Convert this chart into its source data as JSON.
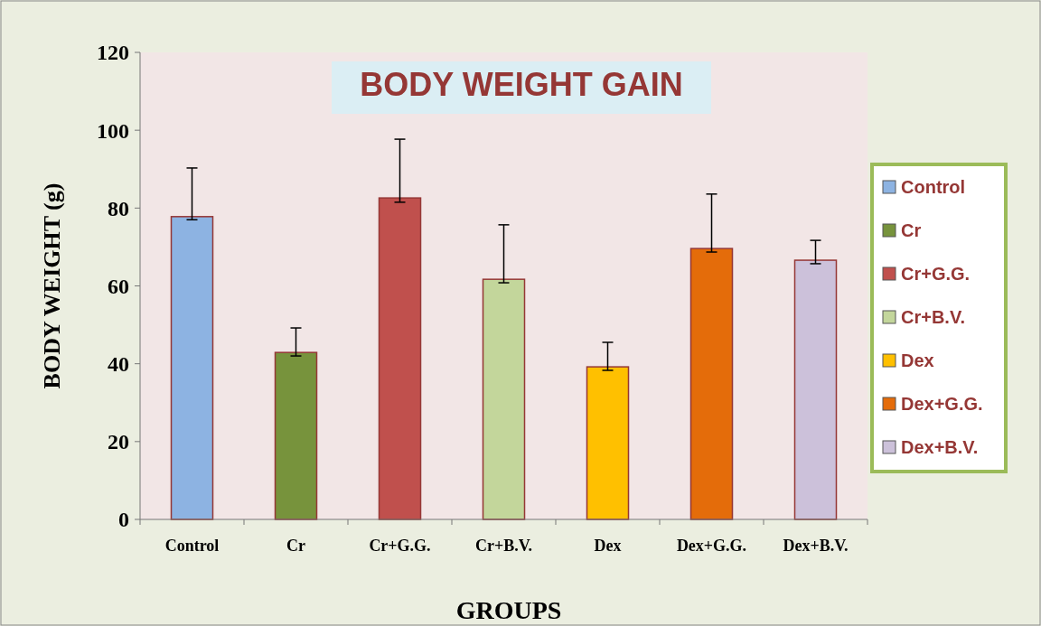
{
  "chart_data": {
    "type": "bar",
    "title": "BODY WEIGHT GAIN",
    "xlabel": "GROUPS",
    "ylabel": "BODY WEIGHT (g)",
    "categories": [
      "Control",
      "Cr",
      "Cr+G.G.",
      "Cr+B.V.",
      "Dex",
      "Dex+G.G.",
      "Dex+B.V."
    ],
    "stacked": true,
    "series": [
      {
        "name": "Control",
        "color": "#8db3e2",
        "values": [
          77.8,
          null,
          null,
          null,
          null,
          null,
          null
        ],
        "errors": [
          [
            77,
            90.3
          ],
          null,
          null,
          null,
          null,
          null,
          null
        ]
      },
      {
        "name": "Cr",
        "color": "#77933c",
        "values": [
          null,
          42.9,
          null,
          null,
          null,
          null,
          null
        ],
        "errors": [
          null,
          [
            42,
            49.2
          ],
          null,
          null,
          null,
          null,
          null
        ]
      },
      {
        "name": "Cr+G.G.",
        "color": "#c0504d",
        "values": [
          null,
          null,
          82.6,
          null,
          null,
          null,
          null
        ],
        "errors": [
          null,
          null,
          [
            81.5,
            97.7
          ],
          null,
          null,
          null,
          null
        ]
      },
      {
        "name": "Cr+B.V.",
        "color": "#c3d69b",
        "values": [
          null,
          null,
          null,
          61.7,
          null,
          null,
          null
        ],
        "errors": [
          null,
          null,
          null,
          [
            60.8,
            75.7
          ],
          null,
          null,
          null
        ]
      },
      {
        "name": "Dex",
        "color": "#ffc000",
        "values": [
          null,
          null,
          null,
          null,
          39.2,
          null,
          null
        ],
        "errors": [
          null,
          null,
          null,
          null,
          [
            38.3,
            45.5
          ],
          null,
          null
        ]
      },
      {
        "name": "Dex+G.G.",
        "color": "#e46c0a",
        "values": [
          null,
          null,
          null,
          null,
          null,
          69.6,
          null
        ],
        "errors": [
          null,
          null,
          null,
          null,
          null,
          [
            68.7,
            83.6
          ],
          null
        ]
      },
      {
        "name": "Dex+B.V.",
        "color": "#ccc1da",
        "values": [
          null,
          null,
          null,
          null,
          null,
          null,
          66.6
        ],
        "errors": [
          null,
          null,
          null,
          null,
          null,
          null,
          [
            65.7,
            71.7
          ]
        ]
      }
    ],
    "ylim": [
      0,
      120
    ],
    "yticks": [
      0,
      20,
      40,
      60,
      80,
      100,
      120
    ],
    "grid": false,
    "legend": "right"
  }
}
